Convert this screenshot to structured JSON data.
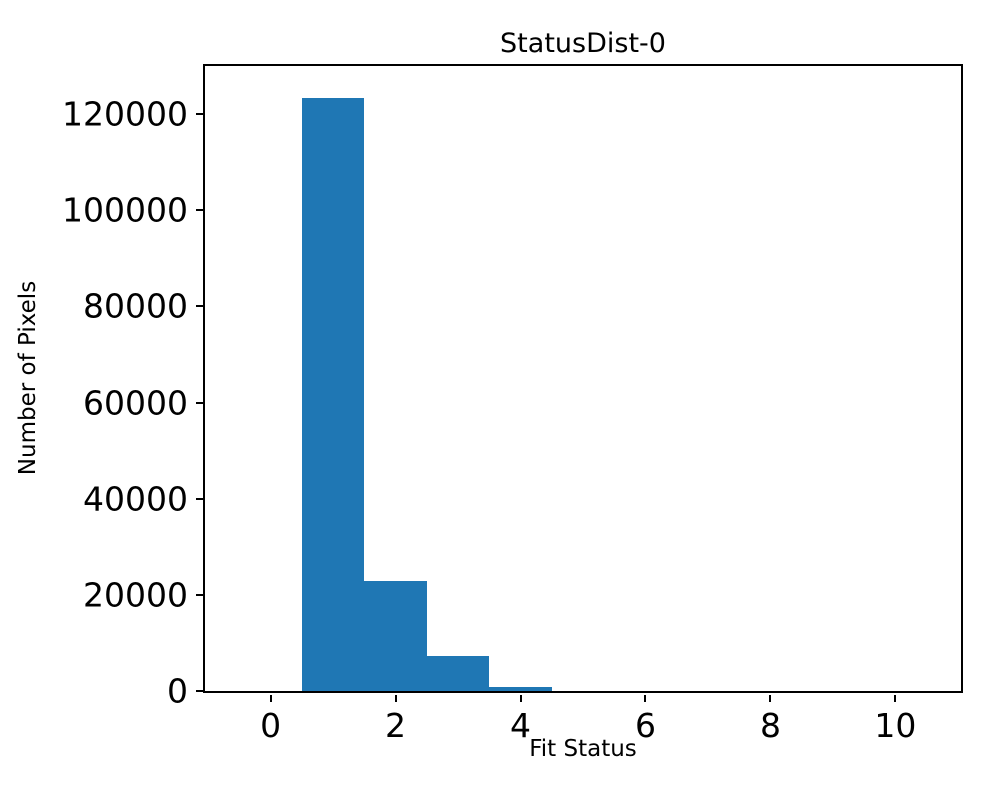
{
  "chart_data": {
    "type": "bar",
    "subtype": "histogram",
    "title": "StatusDist-0",
    "xlabel": "Fit Status",
    "ylabel": "Number of Pixels",
    "bar_color": "#1f77b4",
    "background_color": "#ffffff",
    "axis_color": "#000000",
    "bin_edges": [
      -0.5,
      0.5,
      1.5,
      2.5,
      3.5,
      4.5,
      5.5,
      6.5,
      7.5,
      8.5,
      9.5,
      10.5
    ],
    "counts": [
      0,
      123300,
      22800,
      7300,
      800,
      0,
      0,
      0,
      0,
      0,
      0
    ],
    "xlim": [
      -1.05,
      11.05
    ],
    "ylim": [
      0,
      130000
    ],
    "xticks": [
      0,
      2,
      4,
      6,
      8,
      10
    ],
    "yticks": [
      0,
      20000,
      40000,
      60000,
      80000,
      100000,
      120000
    ],
    "grid": false,
    "legend": "none"
  }
}
